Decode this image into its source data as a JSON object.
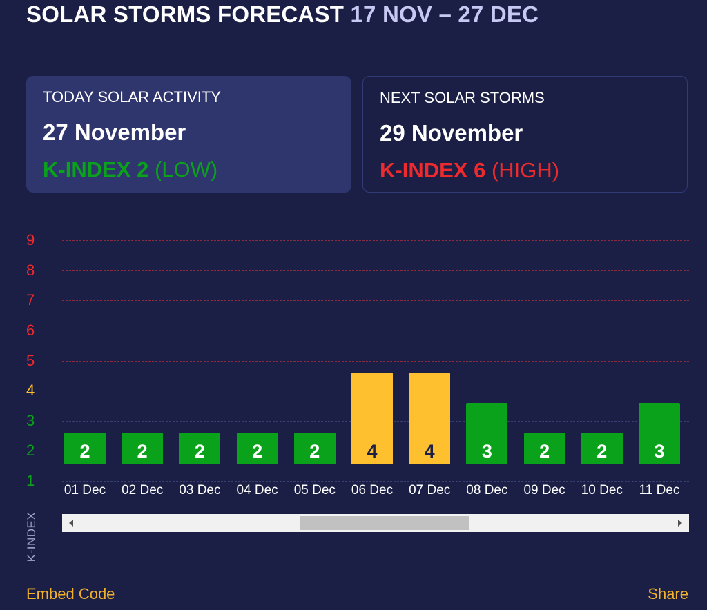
{
  "header": {
    "title": "SOLAR STORMS FORECAST",
    "range": "17 NOV – 27 DEC"
  },
  "today": {
    "label": "TODAY SOLAR ACTIVITY",
    "date": "27 November",
    "kindex": "K-INDEX 2",
    "level": "(LOW)"
  },
  "next": {
    "label": "NEXT SOLAR STORMS",
    "date": "29 November",
    "kindex": "K-INDEX 6",
    "level": "(HIGH)"
  },
  "colors": {
    "low": "#0aa21a",
    "moderate": "#fec02f",
    "high": "#ee2a2c",
    "background": "#1b1f45"
  },
  "chart_data": {
    "type": "bar",
    "ylabel": "K-INDEX",
    "ylim": [
      1,
      9
    ],
    "yticks": [
      "1",
      "2",
      "3",
      "4",
      "5",
      "6",
      "7",
      "8",
      "9"
    ],
    "categories": [
      "01 Dec",
      "02 Dec",
      "03 Dec",
      "04 Dec",
      "05 Dec",
      "06 Dec",
      "07 Dec",
      "08 Dec",
      "09 Dec",
      "10 Dec",
      "11 Dec"
    ],
    "values": [
      2,
      2,
      2,
      2,
      2,
      4,
      4,
      3,
      2,
      2,
      3
    ],
    "scroll_thumb_position": 0.38,
    "scroll_thumb_fraction": 0.27
  },
  "footer": {
    "embed": "Embed Code",
    "share": "Share"
  }
}
